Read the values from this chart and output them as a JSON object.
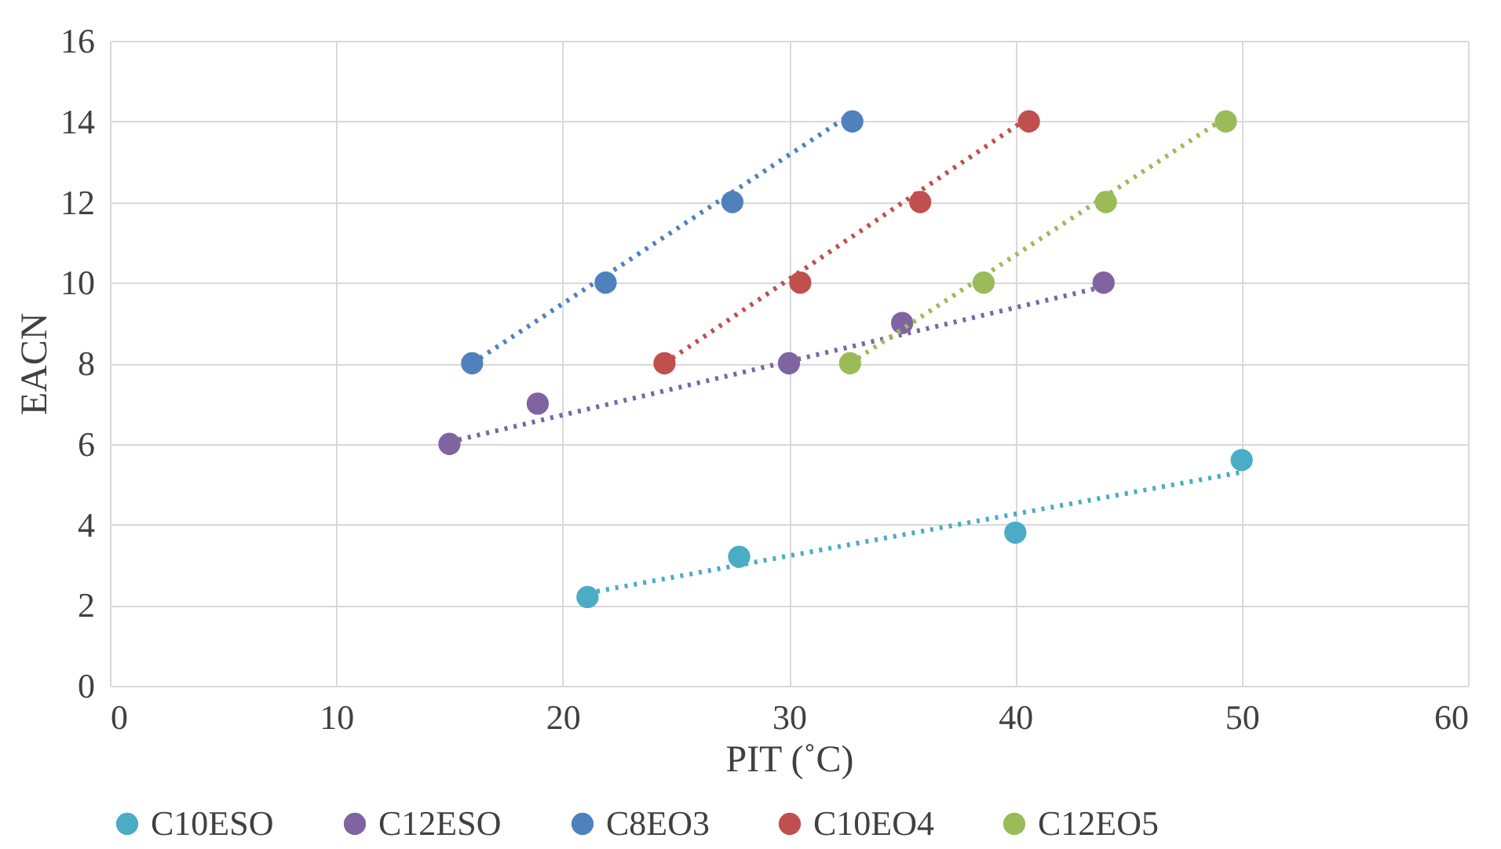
{
  "chart_data": {
    "type": "scatter",
    "xlabel": "PIT (˚C)",
    "ylabel": "EACN",
    "xlim": [
      0,
      60
    ],
    "xticks": [
      0,
      10,
      20,
      30,
      40,
      50,
      60
    ],
    "ylim": [
      0,
      16
    ],
    "yticks": [
      0,
      2,
      4,
      6,
      8,
      10,
      12,
      14,
      16
    ],
    "grid": true,
    "legend": "bottom",
    "marker": "circle",
    "series": [
      {
        "name": "C10ESO",
        "color": "#4bacc6",
        "x": [
          21.1,
          27.8,
          40.0,
          50.0
        ],
        "values": [
          2.2,
          3.2,
          3.8,
          5.6
        ]
      },
      {
        "name": "C12ESO",
        "color": "#8064a2",
        "x": [
          15.0,
          18.9,
          30.0,
          35.0,
          43.9
        ],
        "values": [
          6,
          7,
          8,
          9,
          10
        ]
      },
      {
        "name": "C8EO3",
        "color": "#4f81bd",
        "x": [
          16.0,
          21.9,
          27.5,
          32.8
        ],
        "values": [
          8,
          10,
          12,
          14
        ]
      },
      {
        "name": "C10EO4",
        "color": "#c0504d",
        "x": [
          24.5,
          30.5,
          35.8,
          40.6
        ],
        "values": [
          8,
          10,
          12,
          14
        ]
      },
      {
        "name": "C12EO5",
        "color": "#9bbb59",
        "x": [
          32.7,
          38.6,
          44.0,
          49.3
        ],
        "values": [
          8,
          10,
          12,
          14
        ]
      },
      {
        "type": "line",
        "marker": "none",
        "line_style": "dotted",
        "color": "#4bacc6",
        "x": [
          21.1,
          50.0
        ],
        "values": [
          2.3,
          5.3
        ]
      },
      {
        "type": "line",
        "marker": "none",
        "line_style": "dotted",
        "color": "#8064a2",
        "x": [
          15.0,
          43.9
        ],
        "values": [
          6.05,
          9.9
        ]
      },
      {
        "type": "line",
        "marker": "none",
        "line_style": "dotted",
        "color": "#4f81bd",
        "x": [
          16.0,
          32.8
        ],
        "values": [
          8.0,
          14.2
        ]
      },
      {
        "type": "line",
        "marker": "none",
        "line_style": "dotted",
        "color": "#c0504d",
        "x": [
          24.5,
          40.6
        ],
        "values": [
          8.0,
          14.1
        ]
      },
      {
        "type": "line",
        "marker": "none",
        "line_style": "dotted",
        "color": "#9bbb59",
        "x": [
          32.7,
          49.3
        ],
        "values": [
          8.0,
          14.1
        ]
      }
    ]
  }
}
